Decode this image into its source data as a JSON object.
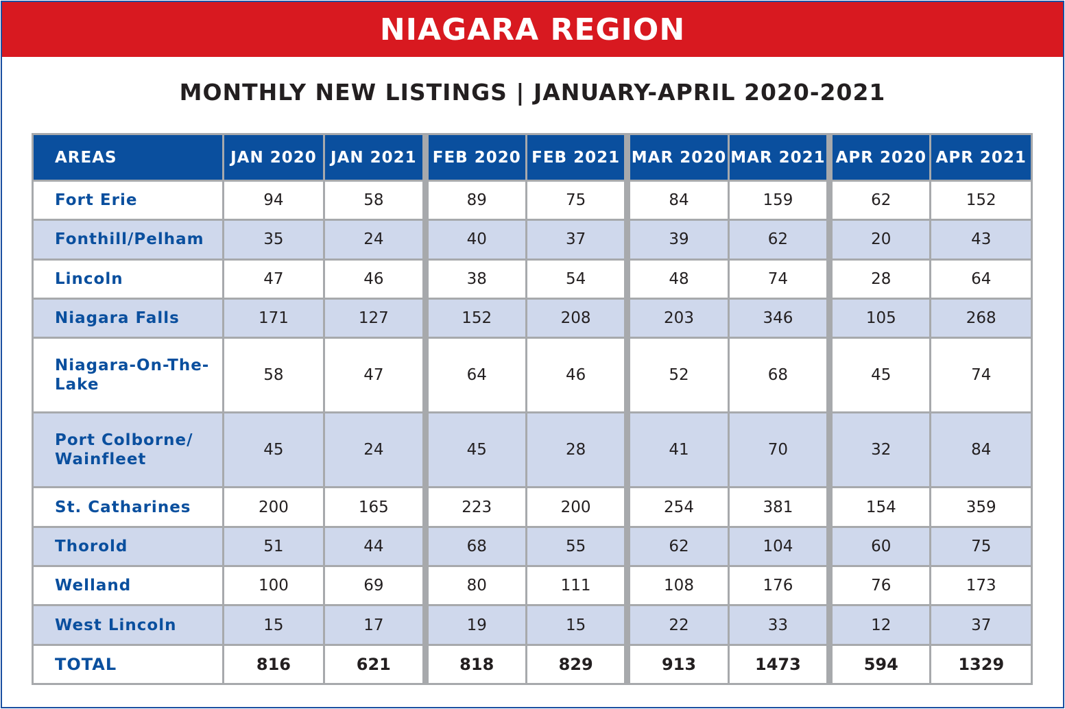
{
  "title": "NIAGARA REGION",
  "subtitle": "MONTHLY NEW LISTINGS | JANUARY-APRIL 2020-2021",
  "colors": {
    "banner": "#d81920",
    "header": "#0a4f9e",
    "alt_row": "#cfd8ec",
    "area_text": "#0a4f9e"
  },
  "chart_data": {
    "type": "table",
    "title": "MONTHLY NEW LISTINGS | JANUARY-APRIL 2020-2021",
    "area_header": "AREAS",
    "columns": [
      "JAN 2020",
      "JAN 2021",
      "FEB 2020",
      "FEB 2021",
      "MAR 2020",
      "MAR 2021",
      "APR 2020",
      "APR 2021"
    ],
    "rows": [
      {
        "area": "Fort Erie",
        "values": [
          94,
          58,
          89,
          75,
          84,
          159,
          62,
          152
        ]
      },
      {
        "area": "Fonthill/Pelham",
        "values": [
          35,
          24,
          40,
          37,
          39,
          62,
          20,
          43
        ]
      },
      {
        "area": "Lincoln",
        "values": [
          47,
          46,
          38,
          54,
          48,
          74,
          28,
          64
        ]
      },
      {
        "area": "Niagara Falls",
        "values": [
          171,
          127,
          152,
          208,
          203,
          346,
          105,
          268
        ]
      },
      {
        "area": "Niagara-On-The-Lake",
        "values": [
          58,
          47,
          64,
          46,
          52,
          68,
          45,
          74
        ]
      },
      {
        "area": "Port Colborne/ Wainfleet",
        "values": [
          45,
          24,
          45,
          28,
          41,
          70,
          32,
          84
        ]
      },
      {
        "area": "St. Catharines",
        "values": [
          200,
          165,
          223,
          200,
          254,
          381,
          154,
          359
        ]
      },
      {
        "area": "Thorold",
        "values": [
          51,
          44,
          68,
          55,
          62,
          104,
          60,
          75
        ]
      },
      {
        "area": "Welland",
        "values": [
          100,
          69,
          80,
          111,
          108,
          176,
          76,
          173
        ]
      },
      {
        "area": "West Lincoln",
        "values": [
          15,
          17,
          19,
          15,
          22,
          33,
          12,
          37
        ]
      }
    ],
    "total": {
      "area": "TOTAL",
      "values": [
        816,
        621,
        818,
        829,
        913,
        1473,
        594,
        1329
      ]
    }
  }
}
